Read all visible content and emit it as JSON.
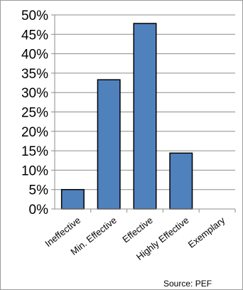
{
  "chart_data": {
    "type": "bar",
    "categories": [
      "Ineffective",
      "Min. Effective",
      "Effective",
      "Highly Effective",
      "Exemplary"
    ],
    "values": [
      5,
      33.3,
      47.8,
      14.4,
      0
    ],
    "y_tick_labels": [
      "0%",
      "5%",
      "10%",
      "15%",
      "20%",
      "25%",
      "30%",
      "35%",
      "40%",
      "45%",
      "50%"
    ],
    "ylim": [
      0,
      50
    ],
    "y_step": 5,
    "grid": true,
    "legend": "none",
    "title": "",
    "xlabel": "",
    "ylabel": "",
    "bar_color": "#4f81bd",
    "bar_border_color": "#000000"
  },
  "source_note": "Source:  PEF"
}
